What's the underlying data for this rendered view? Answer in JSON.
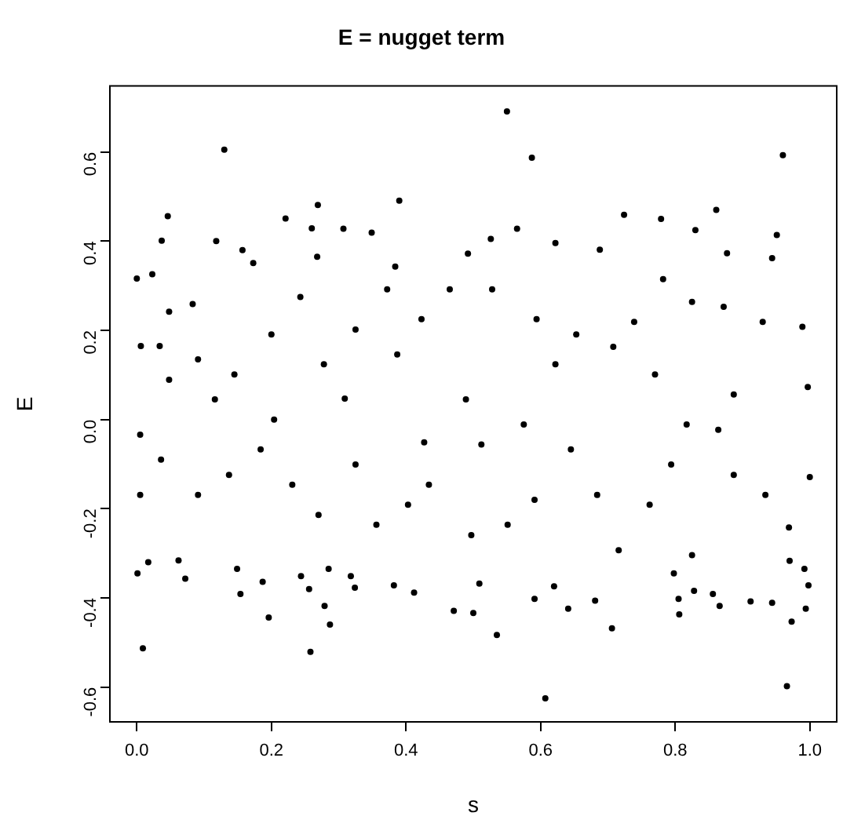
{
  "chart_data": {
    "type": "scatter",
    "title": "E = nugget term",
    "xlabel": "s",
    "ylabel": "E",
    "xlim": [
      -0.04,
      1.04
    ],
    "ylim": [
      -0.678,
      0.748
    ],
    "xticks": [
      {
        "value": 0,
        "label": "0.0"
      },
      0.2,
      0.4,
      0.6,
      0.8,
      {
        "value": 1,
        "label": "1.0"
      }
    ],
    "yticks": [
      -0.6,
      -0.4,
      -0.2,
      {
        "value": 0,
        "label": "0.0"
      },
      0.2,
      0.4,
      0.6
    ],
    "grid": false,
    "legend": false,
    "marker": "circle",
    "color": "#000000",
    "x": [
      0.55,
      0.13,
      0.587,
      0.96,
      0.39,
      0.269,
      0.046,
      0.221,
      0.037,
      0.118,
      0.26,
      0.307,
      0.349,
      0.724,
      0.779,
      0.861,
      0.83,
      0.951,
      0.565,
      0.526,
      0.492,
      0.688,
      0.622,
      0.877,
      0.944,
      0.157,
      0.173,
      0.268,
      0.384,
      0.0,
      0.023,
      0.009,
      0.258,
      0.607,
      0.966,
      0.535,
      0.706,
      0.287,
      0.196,
      0.279,
      0.001,
      0.017,
      0.072,
      0.062,
      0.154,
      0.149,
      0.187,
      0.244,
      0.256,
      0.285,
      0.318,
      0.324,
      0.382,
      0.412,
      0.471,
      0.5,
      0.509,
      0.591,
      0.641,
      0.681,
      0.62,
      0.806,
      0.805,
      0.798,
      0.828,
      0.866,
      0.856,
      0.912,
      0.944,
      0.994,
      0.973,
      0.998,
      0.992,
      0.97,
      0.006,
      0.034,
      0.048,
      0.083,
      0.048,
      0.091,
      0.116,
      0.145,
      0.2,
      0.243,
      0.278,
      0.325,
      0.372,
      0.387,
      0.204,
      0.309,
      0.423,
      0.465,
      0.528,
      0.594,
      0.653,
      0.739,
      0.782,
      0.825,
      0.872,
      0.93,
      0.989,
      0.622,
      0.708,
      0.77,
      0.887,
      0.997,
      0.489,
      0.575,
      0.817,
      0.005,
      0.036,
      0.005,
      0.091,
      0.137,
      0.184,
      0.231,
      0.27,
      0.325,
      0.356,
      0.403,
      0.427,
      0.434,
      0.497,
      0.551,
      0.591,
      0.645,
      0.684,
      0.716,
      0.762,
      0.794,
      0.825,
      0.887,
      0.934,
      0.969,
      1.0,
      0.864,
      0.512
    ],
    "values": [
      0.691,
      0.605,
      0.587,
      0.593,
      0.491,
      0.481,
      0.456,
      0.451,
      0.401,
      0.4,
      0.429,
      0.428,
      0.419,
      0.459,
      0.45,
      0.47,
      0.425,
      0.414,
      0.428,
      0.405,
      0.372,
      0.381,
      0.396,
      0.373,
      0.362,
      0.38,
      0.351,
      0.365,
      0.343,
      0.316,
      0.326,
      -0.513,
      -0.521,
      -0.625,
      -0.598,
      -0.483,
      -0.468,
      -0.46,
      -0.444,
      -0.418,
      -0.345,
      -0.32,
      -0.357,
      -0.316,
      -0.391,
      -0.335,
      -0.364,
      -0.351,
      -0.38,
      -0.335,
      -0.351,
      -0.377,
      -0.372,
      -0.388,
      -0.429,
      -0.434,
      -0.368,
      -0.402,
      -0.424,
      -0.406,
      -0.374,
      -0.437,
      -0.402,
      -0.345,
      -0.384,
      -0.418,
      -0.391,
      -0.408,
      -0.411,
      -0.424,
      -0.453,
      -0.372,
      -0.335,
      -0.317,
      0.165,
      0.165,
      0.242,
      0.259,
      0.089,
      0.135,
      0.045,
      0.101,
      0.191,
      0.275,
      0.124,
      0.202,
      0.292,
      0.146,
      0.0,
      0.047,
      0.225,
      0.292,
      0.292,
      0.225,
      0.191,
      0.219,
      0.315,
      0.264,
      0.253,
      0.219,
      0.208,
      0.124,
      0.163,
      0.101,
      0.056,
      0.073,
      0.045,
      -0.011,
      -0.011,
      -0.034,
      -0.09,
      -0.169,
      -0.169,
      -0.124,
      -0.067,
      -0.146,
      -0.214,
      -0.101,
      -0.236,
      -0.191,
      -0.051,
      -0.146,
      -0.259,
      -0.236,
      -0.18,
      -0.067,
      -0.169,
      -0.293,
      -0.191,
      -0.101,
      -0.304,
      -0.124,
      -0.169,
      -0.242,
      -0.129,
      -0.023,
      -0.056
    ]
  }
}
